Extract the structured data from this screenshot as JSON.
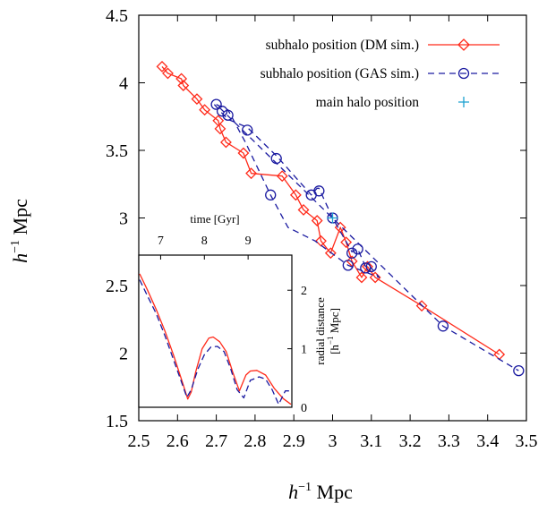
{
  "chart_data": [
    {
      "type": "line",
      "xlabel_prefix": "h",
      "xlabel_exp": "−1",
      "xlabel_unit": " Mpc",
      "ylabel_prefix": "h",
      "ylabel_exp": "−1",
      "ylabel_unit": " Mpc",
      "xlim": [
        2.5,
        3.5
      ],
      "ylim": [
        1.5,
        4.5
      ],
      "xticks": [
        "2.5",
        "2.6",
        "2.7",
        "2.8",
        "2.9",
        "3",
        "3.1",
        "3.2",
        "3.3",
        "3.4",
        "3.5"
      ],
      "yticks": [
        "1.5",
        "2",
        "2.5",
        "3",
        "3.5",
        "4",
        "4.5"
      ],
      "legend_position": "top-right",
      "series": [
        {
          "name": "subhalo position (DM sim.)",
          "color": "#ff2a1a",
          "dash": "solid",
          "marker": "diamond",
          "x": [
            2.56,
            2.575,
            2.61,
            2.615,
            2.65,
            2.67,
            2.705,
            2.71,
            2.725,
            2.77,
            2.79,
            2.87,
            2.905,
            2.925,
            2.96,
            2.97,
            2.995,
            3.02,
            3.035,
            3.05,
            3.075,
            3.09,
            3.11,
            3.23,
            3.43
          ],
          "y": [
            4.12,
            4.07,
            4.03,
            3.98,
            3.88,
            3.8,
            3.72,
            3.66,
            3.56,
            3.48,
            3.33,
            3.31,
            3.17,
            3.06,
            2.98,
            2.83,
            2.74,
            2.93,
            2.82,
            2.68,
            2.56,
            2.64,
            2.56,
            2.35,
            1.99
          ]
        },
        {
          "name": "subhalo position (GAS sim.)",
          "color": "#1a1aa0",
          "dash": "dashed",
          "marker": "circle",
          "x": [
            2.695,
            2.71,
            2.73,
            2.78,
            2.855,
            2.945,
            2.96,
            2.965,
            3.0,
            3.05,
            3.065,
            3.085,
            3.095,
            3.1,
            3.12,
            3.04,
            2.955,
            2.885,
            2.84,
            2.775,
            2.73,
            2.7,
            3.285,
            3.48
          ],
          "y": [
            3.84,
            3.79,
            3.73,
            3.67,
            3.46,
            3.17,
            3.22,
            3.22,
            3.0,
            2.75,
            2.77,
            2.64,
            2.62,
            2.63,
            2.56,
            2.65,
            2.83,
            2.93,
            3.17,
            3.56,
            3.8,
            3.84,
            2.2,
            1.87
          ],
          "markers_x": [
            2.7,
            2.715,
            2.73,
            2.78,
            2.855,
            2.945,
            2.965,
            3.0,
            3.05,
            3.065,
            3.085,
            3.1,
            3.04,
            2.84,
            3.285,
            3.48
          ],
          "markers_y": [
            3.84,
            3.79,
            3.76,
            3.65,
            3.44,
            3.17,
            3.2,
            3.0,
            2.74,
            2.77,
            2.63,
            2.64,
            2.65,
            3.17,
            2.2,
            1.87
          ]
        },
        {
          "name": "main halo position",
          "color": "#1aa0d0",
          "marker": "plus",
          "x": [
            3.0
          ],
          "y": [
            3.0
          ]
        }
      ]
    },
    {
      "type": "line",
      "inset": true,
      "top_xlabel": "time [Gyr]",
      "top_xticks": [
        "7",
        "8",
        "9"
      ],
      "top_xtick_values": [
        7,
        8,
        9
      ],
      "xlim": [
        6.5,
        10.0
      ],
      "ylim": [
        0,
        2.6
      ],
      "ylabel_line1": "radial distance",
      "ylabel_line2_prefix": "[h",
      "ylabel_line2_exp": "−1",
      "ylabel_line2_unit": " Mpc]",
      "yticks": [
        "0",
        "1",
        "2"
      ],
      "ytick_values": [
        0,
        1,
        2
      ],
      "series": [
        {
          "color": "#ff2a1a",
          "dash": "solid",
          "t": [
            6.52,
            6.7,
            6.9,
            7.1,
            7.3,
            7.5,
            7.62,
            7.7,
            7.8,
            7.95,
            8.1,
            8.2,
            8.35,
            8.5,
            8.65,
            8.8,
            8.95,
            9.05,
            9.2,
            9.4,
            9.6,
            9.8,
            9.98
          ],
          "r": [
            2.28,
            2.0,
            1.67,
            1.3,
            0.88,
            0.42,
            0.14,
            0.26,
            0.6,
            1.0,
            1.18,
            1.2,
            1.12,
            0.95,
            0.6,
            0.28,
            0.55,
            0.62,
            0.63,
            0.55,
            0.32,
            0.15,
            0.05
          ]
        },
        {
          "color": "#1a1aa0",
          "dash": "dashed",
          "t": [
            6.52,
            6.7,
            6.9,
            7.1,
            7.3,
            7.5,
            7.6,
            7.7,
            7.85,
            8.0,
            8.15,
            8.3,
            8.45,
            8.6,
            8.75,
            8.9,
            9.05,
            9.25,
            9.4,
            9.55,
            9.7,
            9.85,
            9.98
          ],
          "r": [
            2.18,
            1.9,
            1.6,
            1.22,
            0.8,
            0.38,
            0.17,
            0.3,
            0.65,
            0.9,
            1.03,
            1.04,
            0.95,
            0.66,
            0.3,
            0.16,
            0.46,
            0.52,
            0.48,
            0.3,
            0.05,
            0.28,
            0.28
          ]
        }
      ]
    }
  ]
}
